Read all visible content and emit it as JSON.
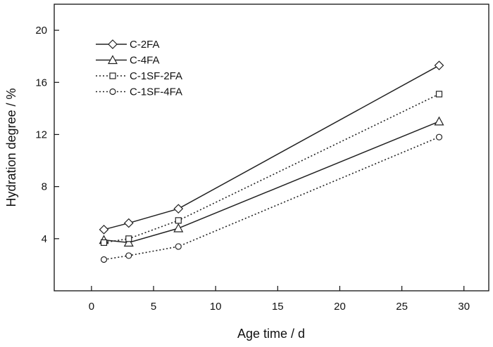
{
  "chart_data": {
    "type": "line",
    "title": "",
    "xlabel": "Age time / d",
    "ylabel": "Hydration degree / %",
    "xlim": [
      -3,
      32
    ],
    "ylim": [
      0,
      22
    ],
    "xticks": [
      0,
      5,
      10,
      15,
      20,
      25,
      30
    ],
    "yticks": [
      4,
      8,
      12,
      16,
      20
    ],
    "x": [
      1,
      3,
      7,
      28
    ],
    "grid": false,
    "legend_position": "top-left",
    "series": [
      {
        "name": "C-2FA",
        "values": [
          4.7,
          5.2,
          6.3,
          17.3
        ],
        "marker": "diamond",
        "line": "solid",
        "color": "#222222"
      },
      {
        "name": "C-4FA",
        "values": [
          3.9,
          3.7,
          4.8,
          13.0
        ],
        "marker": "triangle",
        "line": "solid",
        "color": "#222222"
      },
      {
        "name": "C-1SF-2FA",
        "values": [
          3.7,
          4.0,
          5.4,
          15.1
        ],
        "marker": "square",
        "line": "dotted",
        "color": "#222222"
      },
      {
        "name": "C-1SF-4FA",
        "values": [
          2.4,
          2.7,
          3.4,
          11.8
        ],
        "marker": "circle",
        "line": "dotted",
        "color": "#222222"
      }
    ]
  }
}
